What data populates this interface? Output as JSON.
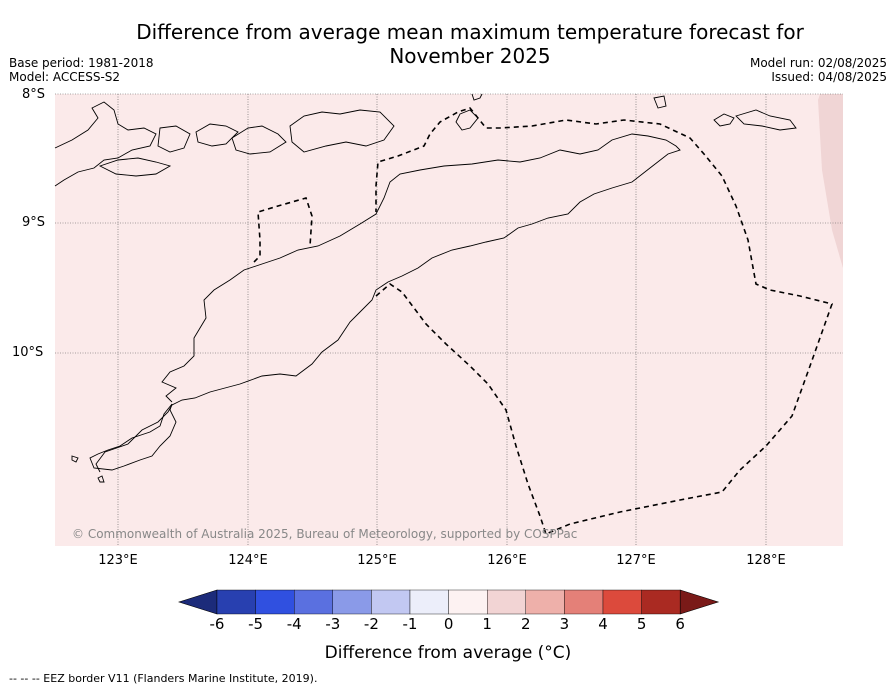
{
  "title": "Difference from average mean maximum temperature forecast for November 2025",
  "meta_left": {
    "base_period": "Base period: 1981-2018",
    "model": "Model: ACCESS-S2"
  },
  "meta_right": {
    "model_run": "Model run: 02/08/2025",
    "issued": "Issued: 04/08/2025"
  },
  "map": {
    "lat_labels": [
      "8°S",
      "9°S",
      "10°S"
    ],
    "lon_labels": [
      "123°E",
      "124°E",
      "125°E",
      "126°E",
      "127°E",
      "128°E"
    ],
    "copyright": "© Commonwealth of Australia 2025, Bureau of Meteorology, supported by COSPPac",
    "fill_color": "#fbeaea",
    "east_edge_color": "#f0d5d5"
  },
  "colorbar": {
    "labels": [
      "-6",
      "-5",
      "-4",
      "-3",
      "-2",
      "-1",
      "0",
      "1",
      "2",
      "3",
      "4",
      "5",
      "6"
    ],
    "colors": [
      "#1c2b7a",
      "#2840b0",
      "#3050e0",
      "#5a70e0",
      "#8a9ae8",
      "#c2c8f2",
      "#eceefa",
      "#fdf2f2",
      "#f2d4d4",
      "#eeb0aa",
      "#e48078",
      "#dc4a3c",
      "#aa2a22",
      "#7a1a18"
    ],
    "title": "Difference from average (°C)"
  },
  "footer": "--  --  -- EEZ border V11 (Flanders Marine Institute, 2019)."
}
